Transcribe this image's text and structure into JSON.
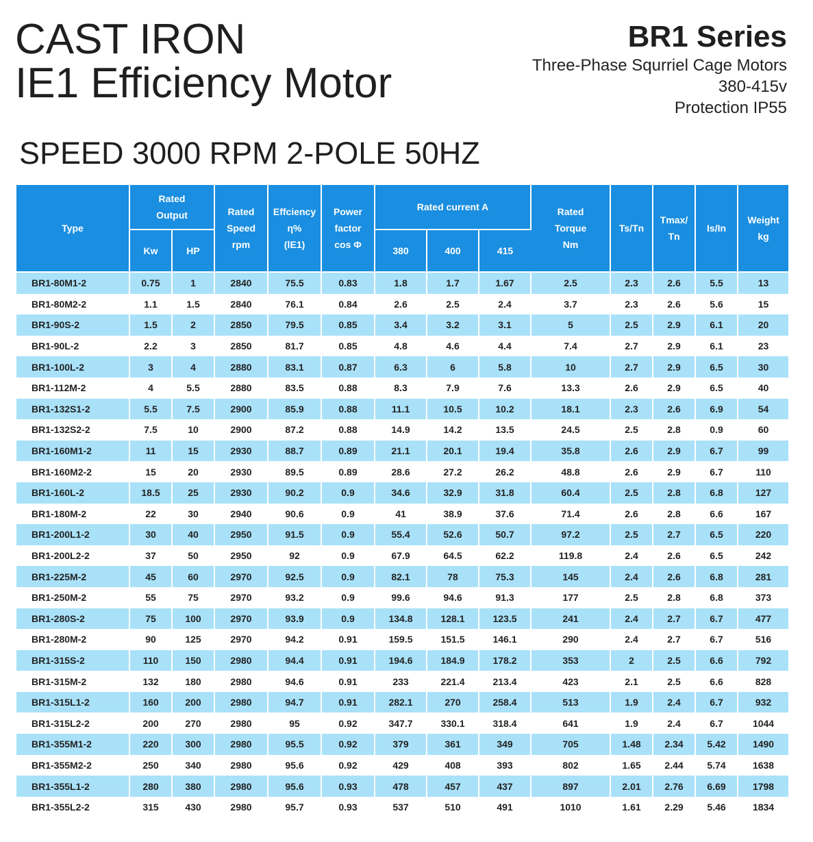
{
  "header": {
    "title_line1": "CAST IRON",
    "title_line2": "IE1 Efficiency Motor",
    "series": "BR1 Series",
    "subtitle1": "Three-Phase Squrriel Cage Motors",
    "subtitle2": "380-415v",
    "subtitle3": "Protection IP55",
    "speed_title": "SPEED 3000 RPM 2-POLE 50HZ"
  },
  "table": {
    "headers": {
      "type": "Type",
      "rated_output": [
        "Rated",
        "Output"
      ],
      "kw": "Kw",
      "hp": "HP",
      "speed": [
        "Rated",
        "Speed",
        "rpm"
      ],
      "efficiency": [
        "Effciency",
        "η%",
        "(ⅠE1)"
      ],
      "power_factor": [
        "Power",
        "factor",
        "cos Φ"
      ],
      "rated_current": "Rated current A",
      "c380": "380",
      "c400": "400",
      "c415": "415",
      "torque": [
        "Rated",
        "Torque",
        "Nm"
      ],
      "tstn": "Ts/Tn",
      "tmax": [
        "Tmax/",
        "Tn"
      ],
      "isin": "Is/In",
      "weight": [
        "Weight",
        "kg"
      ]
    },
    "rows": [
      [
        "BR1-80M1-2",
        "0.75",
        "1",
        "2840",
        "75.5",
        "0.83",
        "1.8",
        "1.7",
        "1.67",
        "2.5",
        "2.3",
        "2.6",
        "5.5",
        "13"
      ],
      [
        "BR1-80M2-2",
        "1.1",
        "1.5",
        "2840",
        "76.1",
        "0.84",
        "2.6",
        "2.5",
        "2.4",
        "3.7",
        "2.3",
        "2.6",
        "5.6",
        "15"
      ],
      [
        "BR1-90S-2",
        "1.5",
        "2",
        "2850",
        "79.5",
        "0.85",
        "3.4",
        "3.2",
        "3.1",
        "5",
        "2.5",
        "2.9",
        "6.1",
        "20"
      ],
      [
        "BR1-90L-2",
        "2.2",
        "3",
        "2850",
        "81.7",
        "0.85",
        "4.8",
        "4.6",
        "4.4",
        "7.4",
        "2.7",
        "2.9",
        "6.1",
        "23"
      ],
      [
        "BR1-100L-2",
        "3",
        "4",
        "2880",
        "83.1",
        "0.87",
        "6.3",
        "6",
        "5.8",
        "10",
        "2.7",
        "2.9",
        "6.5",
        "30"
      ],
      [
        "BR1-112M-2",
        "4",
        "5.5",
        "2880",
        "83.5",
        "0.88",
        "8.3",
        "7.9",
        "7.6",
        "13.3",
        "2.6",
        "2.9",
        "6.5",
        "40"
      ],
      [
        "BR1-132S1-2",
        "5.5",
        "7.5",
        "2900",
        "85.9",
        "0.88",
        "11.1",
        "10.5",
        "10.2",
        "18.1",
        "2.3",
        "2.6",
        "6.9",
        "54"
      ],
      [
        "BR1-132S2-2",
        "7.5",
        "10",
        "2900",
        "87.2",
        "0.88",
        "14.9",
        "14.2",
        "13.5",
        "24.5",
        "2.5",
        "2.8",
        "0.9",
        "60"
      ],
      [
        "BR1-160M1-2",
        "11",
        "15",
        "2930",
        "88.7",
        "0.89",
        "21.1",
        "20.1",
        "19.4",
        "35.8",
        "2.6",
        "2.9",
        "6.7",
        "99"
      ],
      [
        "BR1-160M2-2",
        "15",
        "20",
        "2930",
        "89.5",
        "0.89",
        "28.6",
        "27.2",
        "26.2",
        "48.8",
        "2.6",
        "2.9",
        "6.7",
        "110"
      ],
      [
        "BR1-160L-2",
        "18.5",
        "25",
        "2930",
        "90.2",
        "0.9",
        "34.6",
        "32.9",
        "31.8",
        "60.4",
        "2.5",
        "2.8",
        "6.8",
        "127"
      ],
      [
        "BR1-180M-2",
        "22",
        "30",
        "2940",
        "90.6",
        "0.9",
        "41",
        "38.9",
        "37.6",
        "71.4",
        "2.6",
        "2.8",
        "6.6",
        "167"
      ],
      [
        "BR1-200L1-2",
        "30",
        "40",
        "2950",
        "91.5",
        "0.9",
        "55.4",
        "52.6",
        "50.7",
        "97.2",
        "2.5",
        "2.7",
        "6.5",
        "220"
      ],
      [
        "BR1-200L2-2",
        "37",
        "50",
        "2950",
        "92",
        "0.9",
        "67.9",
        "64.5",
        "62.2",
        "119.8",
        "2.4",
        "2.6",
        "6.5",
        "242"
      ],
      [
        "BR1-225M-2",
        "45",
        "60",
        "2970",
        "92.5",
        "0.9",
        "82.1",
        "78",
        "75.3",
        "145",
        "2.4",
        "2.6",
        "6.8",
        "281"
      ],
      [
        "BR1-250M-2",
        "55",
        "75",
        "2970",
        "93.2",
        "0.9",
        "99.6",
        "94.6",
        "91.3",
        "177",
        "2.5",
        "2.8",
        "6.8",
        "373"
      ],
      [
        "BR1-280S-2",
        "75",
        "100",
        "2970",
        "93.9",
        "0.9",
        "134.8",
        "128.1",
        "123.5",
        "241",
        "2.4",
        "2.7",
        "6.7",
        "477"
      ],
      [
        "BR1-280M-2",
        "90",
        "125",
        "2970",
        "94.2",
        "0.91",
        "159.5",
        "151.5",
        "146.1",
        "290",
        "2.4",
        "2.7",
        "6.7",
        "516"
      ],
      [
        "BR1-315S-2",
        "110",
        "150",
        "2980",
        "94.4",
        "0.91",
        "194.6",
        "184.9",
        "178.2",
        "353",
        "2",
        "2.5",
        "6.6",
        "792"
      ],
      [
        "BR1-315M-2",
        "132",
        "180",
        "2980",
        "94.6",
        "0.91",
        "233",
        "221.4",
        "213.4",
        "423",
        "2.1",
        "2.5",
        "6.6",
        "828"
      ],
      [
        "BR1-315L1-2",
        "160",
        "200",
        "2980",
        "94.7",
        "0.91",
        "282.1",
        "270",
        "258.4",
        "513",
        "1.9",
        "2.4",
        "6.7",
        "932"
      ],
      [
        "BR1-315L2-2",
        "200",
        "270",
        "2980",
        "95",
        "0.92",
        "347.7",
        "330.1",
        "318.4",
        "641",
        "1.9",
        "2.4",
        "6.7",
        "1044"
      ],
      [
        "BR1-355M1-2",
        "220",
        "300",
        "2980",
        "95.5",
        "0.92",
        "379",
        "361",
        "349",
        "705",
        "1.48",
        "2.34",
        "5.42",
        "1490"
      ],
      [
        "BR1-355M2-2",
        "250",
        "340",
        "2980",
        "95.6",
        "0.92",
        "429",
        "408",
        "393",
        "802",
        "1.65",
        "2.44",
        "5.74",
        "1638"
      ],
      [
        "BR1-355L1-2",
        "280",
        "380",
        "2980",
        "95.6",
        "0.93",
        "478",
        "457",
        "437",
        "897",
        "2.01",
        "2.76",
        "6.69",
        "1798"
      ],
      [
        "BR1-355L2-2",
        "315",
        "430",
        "2980",
        "95.7",
        "0.93",
        "537",
        "510",
        "491",
        "1010",
        "1.61",
        "2.29",
        "5.46",
        "1834"
      ]
    ]
  }
}
